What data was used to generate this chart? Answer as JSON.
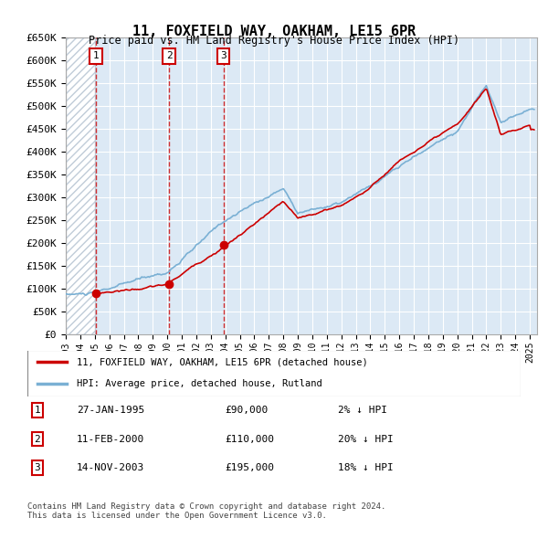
{
  "title": "11, FOXFIELD WAY, OAKHAM, LE15 6PR",
  "subtitle": "Price paid vs. HM Land Registry's House Price Index (HPI)",
  "ylabel_ticks": [
    "£0",
    "£50K",
    "£100K",
    "£150K",
    "£200K",
    "£250K",
    "£300K",
    "£350K",
    "£400K",
    "£450K",
    "£500K",
    "£550K",
    "£600K",
    "£650K"
  ],
  "ytick_values": [
    0,
    50000,
    100000,
    150000,
    200000,
    250000,
    300000,
    350000,
    400000,
    450000,
    500000,
    550000,
    600000,
    650000
  ],
  "xmin": 1993.0,
  "xmax": 2025.5,
  "ymin": 0,
  "ymax": 650000,
  "hatch_end_year": 1995.0,
  "sale_points": [
    {
      "year": 1995.07,
      "price": 90000,
      "label": "1"
    },
    {
      "year": 2000.12,
      "price": 110000,
      "label": "2"
    },
    {
      "year": 2003.87,
      "price": 195000,
      "label": "3"
    }
  ],
  "legend_entries": [
    {
      "label": "11, FOXFIELD WAY, OAKHAM, LE15 6PR (detached house)",
      "color": "#cc0000"
    },
    {
      "label": "HPI: Average price, detached house, Rutland",
      "color": "#7ab0d4"
    }
  ],
  "table_rows": [
    {
      "num": "1",
      "date": "27-JAN-1995",
      "price": "£90,000",
      "hpi": "2% ↓ HPI"
    },
    {
      "num": "2",
      "date": "11-FEB-2000",
      "price": "£110,000",
      "hpi": "20% ↓ HPI"
    },
    {
      "num": "3",
      "date": "14-NOV-2003",
      "price": "£195,000",
      "hpi": "18% ↓ HPI"
    }
  ],
  "footer": "Contains HM Land Registry data © Crown copyright and database right 2024.\nThis data is licensed under the Open Government Licence v3.0.",
  "bg_color": "#dce9f5",
  "hatch_color": "#c0ccd8",
  "grid_color": "#ffffff",
  "line_color_red": "#cc0000",
  "line_color_blue": "#7ab0d4",
  "dashed_line_color": "#cc0000"
}
